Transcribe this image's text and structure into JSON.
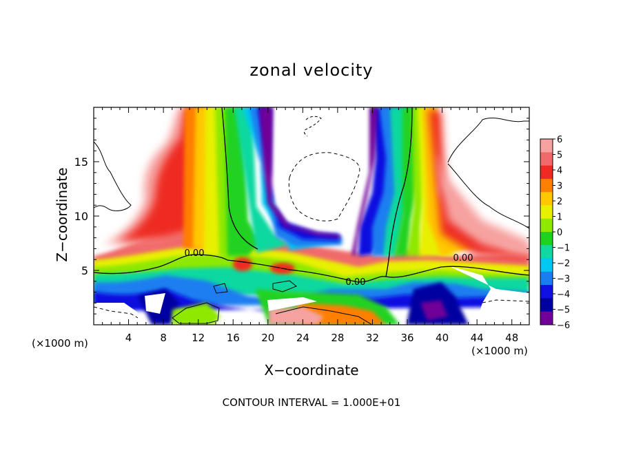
{
  "chart_data": {
    "type": "heatmap",
    "title": "zonal velocity",
    "xlabel": "X−coordinate",
    "ylabel": "Z−coordinate",
    "x_unit_label": "(×1000 m)",
    "z_unit_label": "(×1000 m)",
    "xlim": [
      0,
      50
    ],
    "ylim": [
      0,
      20
    ],
    "x_ticks": [
      4,
      8,
      12,
      16,
      20,
      24,
      28,
      32,
      36,
      40,
      44,
      48
    ],
    "y_ticks": [
      5,
      10,
      15
    ],
    "colorbar": {
      "ticks": [
        6,
        5,
        4,
        3,
        2,
        1,
        0,
        -1,
        -2,
        -3,
        -4,
        -5,
        -6
      ],
      "tick_labels": [
        "6",
        "5",
        "4",
        "3",
        "2",
        "1",
        "0",
        "−1",
        "−2",
        "−3",
        "−4",
        "−5",
        "−6"
      ],
      "colors": [
        "#f6a2a0",
        "#f06a6a",
        "#ee2a22",
        "#ff7f00",
        "#ffc800",
        "#e8f000",
        "#8ee800",
        "#20d220",
        "#10d8a0",
        "#00c8f0",
        "#1a7ef0",
        "#1010e0",
        "#0000a0",
        "#700098"
      ]
    },
    "contour_labels": [
      "0.00",
      "0.00",
      "0.00"
    ],
    "footer": "CONTOUR INTERVAL = 1.000E+01"
  }
}
